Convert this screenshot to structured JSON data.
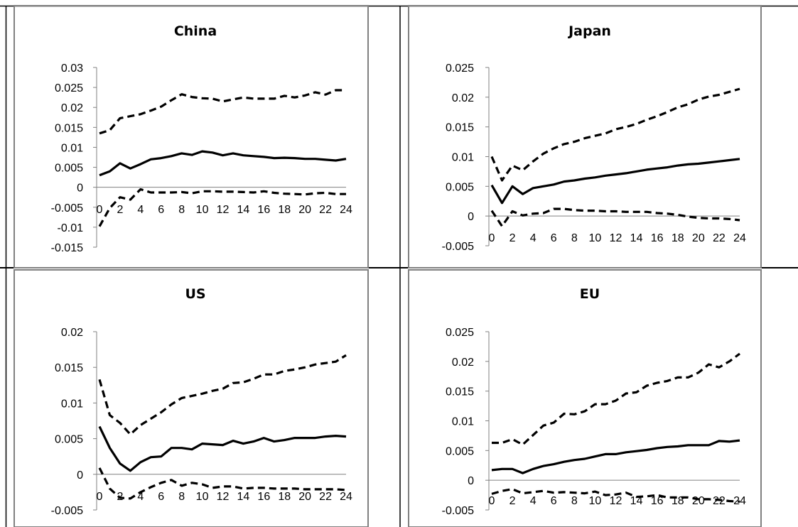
{
  "chart_data": [
    {
      "type": "line",
      "title": "China",
      "x": [
        0,
        1,
        2,
        3,
        4,
        5,
        6,
        7,
        8,
        9,
        10,
        11,
        12,
        13,
        14,
        15,
        16,
        17,
        18,
        19,
        20,
        21,
        22,
        23,
        24
      ],
      "x_tick_labels": [
        "0",
        "2",
        "4",
        "6",
        "8",
        "10",
        "12",
        "14",
        "16",
        "18",
        "20",
        "22",
        "24"
      ],
      "y_tick_labels": [
        "0.03",
        "0.025",
        "0.02",
        "0.015",
        "0.01",
        "0.005",
        "0",
        "-0.005",
        "-0.01",
        "-0.015"
      ],
      "ylim": [
        -0.015,
        0.03
      ],
      "series": [
        {
          "style": "solid",
          "values": [
            0.003,
            0.004,
            0.006,
            0.0047,
            0.0058,
            0.007,
            0.0073,
            0.0078,
            0.0085,
            0.0081,
            0.009,
            0.0087,
            0.008,
            0.0085,
            0.008,
            0.0078,
            0.0076,
            0.0073,
            0.0074,
            0.0073,
            0.0071,
            0.0071,
            0.0069,
            0.0067,
            0.0071
          ]
        },
        {
          "style": "dashed",
          "values": [
            0.0135,
            0.0143,
            0.0173,
            0.0178,
            0.0183,
            0.0192,
            0.0202,
            0.0218,
            0.0233,
            0.0226,
            0.0223,
            0.0222,
            0.0215,
            0.022,
            0.0225,
            0.0222,
            0.0222,
            0.0222,
            0.0229,
            0.0225,
            0.023,
            0.0238,
            0.0232,
            0.0243,
            0.0243
          ]
        },
        {
          "style": "dashed",
          "values": [
            -0.0098,
            -0.0052,
            -0.0025,
            -0.0031,
            -0.0005,
            -0.0013,
            -0.0013,
            -0.0013,
            -0.0012,
            -0.0015,
            -0.001,
            -0.001,
            -0.0011,
            -0.0011,
            -0.0012,
            -0.0013,
            -0.001,
            -0.0014,
            -0.0016,
            -0.0017,
            -0.0018,
            -0.0015,
            -0.0014,
            -0.0017,
            -0.0017
          ]
        }
      ]
    },
    {
      "type": "line",
      "title": "Japan",
      "x": [
        0,
        1,
        2,
        3,
        4,
        5,
        6,
        7,
        8,
        9,
        10,
        11,
        12,
        13,
        14,
        15,
        16,
        17,
        18,
        19,
        20,
        21,
        22,
        23,
        24
      ],
      "x_tick_labels": [
        "0",
        "2",
        "4",
        "6",
        "8",
        "10",
        "12",
        "14",
        "16",
        "18",
        "20",
        "22",
        "24"
      ],
      "y_tick_labels": [
        "0.025",
        "0.02",
        "0.015",
        "0.01",
        "0.005",
        "0",
        "-0.005"
      ],
      "ylim": [
        -0.005,
        0.025
      ],
      "series": [
        {
          "style": "solid",
          "values": [
            0.0052,
            0.0022,
            0.005,
            0.0037,
            0.0047,
            0.005,
            0.0053,
            0.0058,
            0.006,
            0.0063,
            0.0065,
            0.0068,
            0.007,
            0.0072,
            0.0075,
            0.0078,
            0.008,
            0.0082,
            0.0085,
            0.0087,
            0.0088,
            0.009,
            0.0092,
            0.0094,
            0.0096
          ]
        },
        {
          "style": "dashed",
          "values": [
            0.01,
            0.006,
            0.0085,
            0.0077,
            0.0092,
            0.0105,
            0.0114,
            0.0121,
            0.0125,
            0.0131,
            0.0135,
            0.0139,
            0.0146,
            0.015,
            0.0155,
            0.0162,
            0.0168,
            0.0175,
            0.0183,
            0.0188,
            0.0196,
            0.0201,
            0.0204,
            0.0209,
            0.0214
          ]
        },
        {
          "style": "dashed",
          "values": [
            0.0009,
            -0.0017,
            0.0008,
            0.0001,
            0.0004,
            0.0005,
            0.0012,
            0.0012,
            0.001,
            0.0009,
            0.0009,
            0.0008,
            0.0008,
            0.0007,
            0.0007,
            0.0007,
            0.0005,
            0.0004,
            0.0002,
            -0.0001,
            -0.0003,
            -0.0004,
            -0.0004,
            -0.0005,
            -0.0007
          ]
        }
      ]
    },
    {
      "type": "line",
      "title": "US",
      "x": [
        0,
        1,
        2,
        3,
        4,
        5,
        6,
        7,
        8,
        9,
        10,
        11,
        12,
        13,
        14,
        15,
        16,
        17,
        18,
        19,
        20,
        21,
        22,
        23,
        24
      ],
      "x_tick_labels": [
        "0",
        "2",
        "4",
        "6",
        "8",
        "10",
        "12",
        "14",
        "16",
        "18",
        "20",
        "22",
        "24"
      ],
      "y_tick_labels": [
        "0.02",
        "0.015",
        "0.01",
        "0.005",
        "0",
        "-0.005"
      ],
      "ylim": [
        -0.005,
        0.02
      ],
      "series": [
        {
          "style": "solid",
          "values": [
            0.0067,
            0.0037,
            0.0015,
            0.0005,
            0.0017,
            0.0024,
            0.0025,
            0.0037,
            0.0037,
            0.0035,
            0.0043,
            0.0042,
            0.0041,
            0.0047,
            0.0043,
            0.0046,
            0.0051,
            0.0046,
            0.0048,
            0.0051,
            0.0051,
            0.0051,
            0.0053,
            0.0054,
            0.0053
          ]
        },
        {
          "style": "dashed",
          "values": [
            0.0133,
            0.0083,
            0.0072,
            0.0056,
            0.0069,
            0.0078,
            0.0087,
            0.0098,
            0.0107,
            0.011,
            0.0113,
            0.0117,
            0.012,
            0.0128,
            0.0129,
            0.0134,
            0.014,
            0.014,
            0.0145,
            0.0147,
            0.015,
            0.0154,
            0.0156,
            0.0158,
            0.0167
          ]
        },
        {
          "style": "dashed",
          "values": [
            0.0009,
            -0.002,
            -0.0033,
            -0.0034,
            -0.0025,
            -0.0018,
            -0.0012,
            -0.0008,
            -0.0016,
            -0.0012,
            -0.0014,
            -0.0019,
            -0.0017,
            -0.0017,
            -0.002,
            -0.0019,
            -0.0019,
            -0.002,
            -0.002,
            -0.002,
            -0.0021,
            -0.0021,
            -0.0021,
            -0.0021,
            -0.0022
          ]
        }
      ]
    },
    {
      "type": "line",
      "title": "EU",
      "x": [
        0,
        1,
        2,
        3,
        4,
        5,
        6,
        7,
        8,
        9,
        10,
        11,
        12,
        13,
        14,
        15,
        16,
        17,
        18,
        19,
        20,
        21,
        22,
        23,
        24
      ],
      "x_tick_labels": [
        "0",
        "2",
        "4",
        "6",
        "8",
        "10",
        "12",
        "14",
        "16",
        "18",
        "20",
        "22",
        "24"
      ],
      "y_tick_labels": [
        "0.025",
        "0.02",
        "0.015",
        "0.01",
        "0.005",
        "0",
        "-0.005"
      ],
      "ylim": [
        -0.005,
        0.025
      ],
      "series": [
        {
          "style": "solid",
          "values": [
            0.0017,
            0.0019,
            0.0019,
            0.0012,
            0.0019,
            0.0024,
            0.0027,
            0.0031,
            0.0034,
            0.0036,
            0.004,
            0.0044,
            0.0044,
            0.0047,
            0.0049,
            0.0051,
            0.0054,
            0.0056,
            0.0057,
            0.0059,
            0.0059,
            0.0059,
            0.0066,
            0.0065,
            0.0067
          ]
        },
        {
          "style": "dashed",
          "values": [
            0.0063,
            0.0063,
            0.0069,
            0.006,
            0.0076,
            0.0092,
            0.0097,
            0.0112,
            0.0111,
            0.0116,
            0.0128,
            0.0128,
            0.0134,
            0.0146,
            0.0148,
            0.0159,
            0.0164,
            0.0167,
            0.0173,
            0.0173,
            0.0181,
            0.0195,
            0.019,
            0.02,
            0.0213
          ]
        },
        {
          "style": "dashed",
          "values": [
            -0.0023,
            -0.0018,
            -0.0015,
            -0.0022,
            -0.002,
            -0.0018,
            -0.0021,
            -0.002,
            -0.0021,
            -0.0022,
            -0.0019,
            -0.0025,
            -0.0024,
            -0.0021,
            -0.0028,
            -0.0027,
            -0.0025,
            -0.0029,
            -0.0029,
            -0.0029,
            -0.0032,
            -0.0032,
            -0.0033,
            -0.0035,
            -0.0036
          ]
        }
      ]
    }
  ],
  "colors": {
    "line": "#000000",
    "axis": "#808080",
    "frame": "#808080",
    "grid": "#000000"
  }
}
